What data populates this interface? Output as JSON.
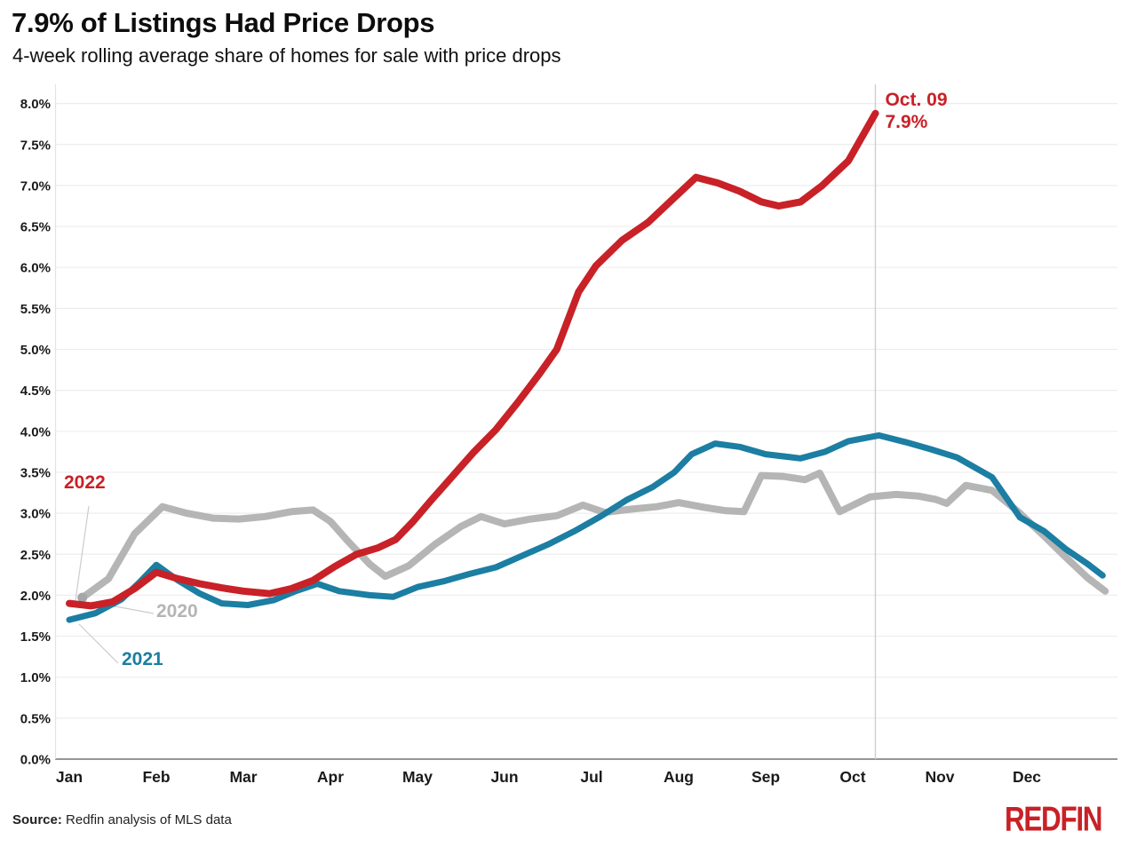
{
  "header": {
    "title": "7.9% of Listings Had Price Drops",
    "subtitle": "4-week rolling average share of homes for sale with price drops"
  },
  "chart_data": {
    "type": "line",
    "title": "7.9% of Listings Had Price Drops",
    "subtitle": "4-week rolling average share of homes for sale with price drops",
    "x_axis": {
      "unit": "months",
      "tick_labels": [
        "Jan",
        "Feb",
        "Mar",
        "Apr",
        "May",
        "Jun",
        "Jul",
        "Aug",
        "Sep",
        "Oct",
        "Nov",
        "Dec"
      ],
      "range": [
        0,
        12.1
      ],
      "grid": false
    },
    "y_axis": {
      "range": [
        0,
        8
      ],
      "tick_step": 0.5,
      "tick_suffix": "%",
      "grid": true
    },
    "annotation": {
      "date_label": "Oct. 09",
      "value_label": "7.9%",
      "x_month": 9.26,
      "y_value": 7.9,
      "color": "#c82127"
    },
    "legend_position": "inline-left",
    "series": [
      {
        "name": "2020",
        "color": "#b5b5b5",
        "start_dot": true,
        "points": [
          [
            0.15,
            1.97
          ],
          [
            0.45,
            2.2
          ],
          [
            0.75,
            2.75
          ],
          [
            1.07,
            3.08
          ],
          [
            1.35,
            3.0
          ],
          [
            1.65,
            2.94
          ],
          [
            1.95,
            2.93
          ],
          [
            2.25,
            2.96
          ],
          [
            2.55,
            3.02
          ],
          [
            2.8,
            3.04
          ],
          [
            3.0,
            2.9
          ],
          [
            3.2,
            2.66
          ],
          [
            3.45,
            2.38
          ],
          [
            3.63,
            2.23
          ],
          [
            3.9,
            2.36
          ],
          [
            4.2,
            2.62
          ],
          [
            4.5,
            2.84
          ],
          [
            4.73,
            2.96
          ],
          [
            5.0,
            2.87
          ],
          [
            5.3,
            2.93
          ],
          [
            5.6,
            2.97
          ],
          [
            5.9,
            3.1
          ],
          [
            6.15,
            3.01
          ],
          [
            6.45,
            3.05
          ],
          [
            6.75,
            3.08
          ],
          [
            7.0,
            3.13
          ],
          [
            7.3,
            3.07
          ],
          [
            7.55,
            3.03
          ],
          [
            7.75,
            3.02
          ],
          [
            7.95,
            3.46
          ],
          [
            8.2,
            3.45
          ],
          [
            8.45,
            3.41
          ],
          [
            8.62,
            3.49
          ],
          [
            8.85,
            3.02
          ],
          [
            9.2,
            3.2
          ],
          [
            9.5,
            3.23
          ],
          [
            9.75,
            3.21
          ],
          [
            9.95,
            3.17
          ],
          [
            10.08,
            3.12
          ],
          [
            10.3,
            3.34
          ],
          [
            10.6,
            3.28
          ],
          [
            10.9,
            3.02
          ],
          [
            11.2,
            2.72
          ],
          [
            11.45,
            2.46
          ],
          [
            11.7,
            2.21
          ],
          [
            11.9,
            2.05
          ]
        ]
      },
      {
        "name": "2021",
        "color": "#1b7ea2",
        "start_dot": false,
        "points": [
          [
            0,
            1.7
          ],
          [
            0.3,
            1.78
          ],
          [
            0.6,
            1.95
          ],
          [
            0.8,
            2.15
          ],
          [
            1.0,
            2.37
          ],
          [
            1.25,
            2.18
          ],
          [
            1.5,
            2.02
          ],
          [
            1.75,
            1.9
          ],
          [
            2.05,
            1.88
          ],
          [
            2.35,
            1.94
          ],
          [
            2.6,
            2.05
          ],
          [
            2.85,
            2.14
          ],
          [
            3.1,
            2.05
          ],
          [
            3.45,
            2.0
          ],
          [
            3.72,
            1.98
          ],
          [
            4.0,
            2.1
          ],
          [
            4.3,
            2.17
          ],
          [
            4.6,
            2.26
          ],
          [
            4.9,
            2.34
          ],
          [
            5.2,
            2.48
          ],
          [
            5.5,
            2.62
          ],
          [
            5.8,
            2.78
          ],
          [
            6.1,
            2.96
          ],
          [
            6.4,
            3.16
          ],
          [
            6.7,
            3.32
          ],
          [
            6.95,
            3.5
          ],
          [
            7.15,
            3.72
          ],
          [
            7.42,
            3.85
          ],
          [
            7.7,
            3.81
          ],
          [
            8.0,
            3.72
          ],
          [
            8.4,
            3.67
          ],
          [
            8.68,
            3.75
          ],
          [
            8.95,
            3.88
          ],
          [
            9.3,
            3.95
          ],
          [
            9.6,
            3.87
          ],
          [
            9.9,
            3.78
          ],
          [
            10.2,
            3.68
          ],
          [
            10.6,
            3.44
          ],
          [
            10.92,
            2.95
          ],
          [
            11.2,
            2.78
          ],
          [
            11.45,
            2.56
          ],
          [
            11.7,
            2.38
          ],
          [
            11.87,
            2.24
          ]
        ]
      },
      {
        "name": "2022",
        "color": "#c82127",
        "start_dot": false,
        "points": [
          [
            0,
            1.9
          ],
          [
            0.25,
            1.87
          ],
          [
            0.5,
            1.92
          ],
          [
            0.75,
            2.08
          ],
          [
            1.0,
            2.28
          ],
          [
            1.25,
            2.2
          ],
          [
            1.5,
            2.14
          ],
          [
            1.75,
            2.09
          ],
          [
            2.0,
            2.05
          ],
          [
            2.3,
            2.02
          ],
          [
            2.55,
            2.08
          ],
          [
            2.8,
            2.18
          ],
          [
            3.05,
            2.35
          ],
          [
            3.3,
            2.5
          ],
          [
            3.55,
            2.58
          ],
          [
            3.75,
            2.68
          ],
          [
            3.95,
            2.9
          ],
          [
            4.15,
            3.15
          ],
          [
            4.4,
            3.45
          ],
          [
            4.65,
            3.75
          ],
          [
            4.9,
            4.02
          ],
          [
            5.15,
            4.35
          ],
          [
            5.4,
            4.7
          ],
          [
            5.6,
            5.0
          ],
          [
            5.85,
            5.7
          ],
          [
            6.05,
            6.02
          ],
          [
            6.35,
            6.33
          ],
          [
            6.65,
            6.55
          ],
          [
            6.95,
            6.85
          ],
          [
            7.2,
            7.1
          ],
          [
            7.45,
            7.03
          ],
          [
            7.7,
            6.93
          ],
          [
            7.95,
            6.8
          ],
          [
            8.15,
            6.75
          ],
          [
            8.4,
            6.8
          ],
          [
            8.65,
            7.0
          ],
          [
            8.95,
            7.3
          ],
          [
            9.26,
            7.88
          ]
        ]
      }
    ]
  },
  "footer": {
    "source_prefix": "Source:",
    "source_text": "Redfin analysis of MLS data",
    "logo_text": "REDFIN"
  }
}
